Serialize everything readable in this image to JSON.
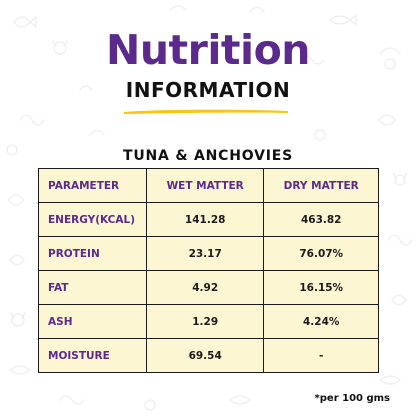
{
  "header": {
    "title": "Nutrition",
    "subtitle": "INFORMATION"
  },
  "section": {
    "title": "TUNA & ANCHOVIES"
  },
  "table": {
    "headers": [
      "PARAMETER",
      "WET MATTER",
      "DRY MATTER"
    ],
    "rows": [
      [
        "ENERGY(KCAL)",
        "141.28",
        "463.82"
      ],
      [
        "PROTEIN",
        "23.17",
        "76.07%"
      ],
      [
        "FAT",
        "4.92",
        "16.15%"
      ],
      [
        "ASH",
        "1.29",
        "4.24%"
      ],
      [
        "MOISTURE",
        "69.54",
        "-"
      ]
    ]
  },
  "footnote": "*per 100 gms",
  "colors": {
    "accent_purple": "#5b2a8c",
    "underline_yellow": "#f5c518",
    "table_fill": "#fdf6d3",
    "text_dark": "#111111"
  },
  "icons": [
    "doodle-background"
  ]
}
